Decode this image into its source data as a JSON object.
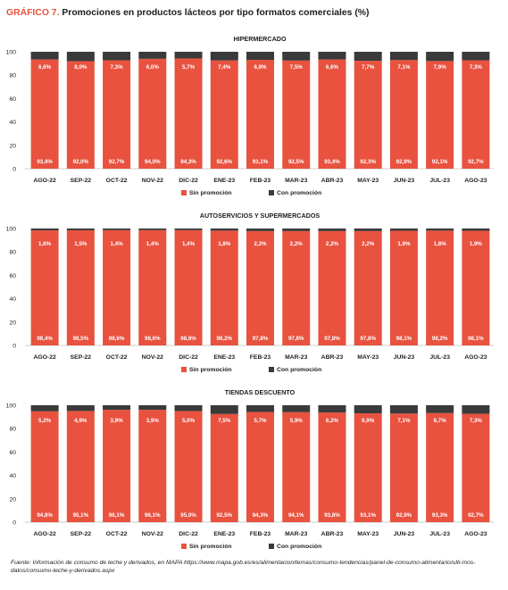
{
  "figure": {
    "label": "GRÁFICO 7.",
    "title": "Promociones en productos lácteos por tipo formatos comerciales (%)",
    "source": "Fuente: Información de consumo de leche y derivados, en MAPA https://www.mapa.gob.es/es/alimentacion/temas/consumo-tendencias/panel-de-consumo-alimentario/ulti-mos-datos/consumo-leche-y-derivados.aspx"
  },
  "colors": {
    "sin_promocion": "#e8523f",
    "con_promocion": "#3a3a3a"
  },
  "chart_data": [
    {
      "type": "bar",
      "stacked": true,
      "title": "HIPERMERCADO",
      "categories": [
        "AGO-22",
        "SEP-22",
        "OCT-22",
        "NOV-22",
        "DIC-22",
        "ENE-23",
        "FEB-23",
        "MAR-23",
        "ABR-23",
        "MAY-23",
        "JUN-23",
        "JUL-23",
        "AGO-23"
      ],
      "series": [
        {
          "name": "Sin promoción",
          "values": [
            93.4,
            92.0,
            92.7,
            94.0,
            94.3,
            92.6,
            93.1,
            92.5,
            93.4,
            92.3,
            92.9,
            92.1,
            92.7
          ],
          "labels": [
            "93,4%",
            "92,0%",
            "92,7%",
            "94,0%",
            "94,3%",
            "92,6%",
            "93,1%",
            "92,5%",
            "93,4%",
            "92,3%",
            "92,9%",
            "92,1%",
            "92,7%"
          ]
        },
        {
          "name": "Con promoción",
          "values": [
            6.6,
            8.0,
            7.3,
            6.0,
            5.7,
            7.4,
            6.9,
            7.5,
            6.6,
            7.7,
            7.1,
            7.9,
            7.3
          ],
          "labels": [
            "6,6%",
            "8,0%",
            "7,3%",
            "6,0%",
            "5,7%",
            "7,4%",
            "6,9%",
            "7,5%",
            "6,6%",
            "7,7%",
            "7,1%",
            "7,9%",
            "7,3%"
          ]
        }
      ],
      "ylim": [
        0,
        100
      ],
      "yticks": [
        "0",
        "20",
        "40",
        "60",
        "80",
        "100"
      ],
      "legend": "bottom"
    },
    {
      "type": "bar",
      "stacked": true,
      "title": "AUTOSERVICIOS Y SUPERMERCADOS",
      "categories": [
        "AGO-22",
        "SEP-22",
        "OCT-22",
        "NOV-22",
        "DIC-22",
        "ENE-23",
        "FEB-23",
        "MAR-23",
        "ABR-23",
        "MAY-23",
        "JUN-23",
        "JUL-23",
        "AGO-23"
      ],
      "series": [
        {
          "name": "Sin promoción",
          "values": [
            98.4,
            98.5,
            98.6,
            98.6,
            98.6,
            98.2,
            97.8,
            97.8,
            97.8,
            97.8,
            98.1,
            98.2,
            98.1
          ],
          "labels": [
            "98,4%",
            "98,5%",
            "98,6%",
            "98,6%",
            "98,6%",
            "98,2%",
            "97,8%",
            "97,8%",
            "97,8%",
            "97,8%",
            "98,1%",
            "98,2%",
            "98,1%"
          ]
        },
        {
          "name": "Con promoción",
          "values": [
            1.6,
            1.5,
            1.4,
            1.4,
            1.4,
            1.8,
            2.2,
            2.2,
            2.2,
            2.2,
            1.9,
            1.8,
            1.9
          ],
          "labels": [
            "1,6%",
            "1,5%",
            "1,4%",
            "1,4%",
            "1,4%",
            "1,8%",
            "2,2%",
            "2,2%",
            "2,2%",
            "2,2%",
            "1,9%",
            "1,8%",
            "1,9%"
          ]
        }
      ],
      "ylim": [
        0,
        100
      ],
      "yticks": [
        "0",
        "20",
        "40",
        "60",
        "80",
        "100"
      ],
      "legend": "bottom"
    },
    {
      "type": "bar",
      "stacked": true,
      "title": "TIENDAS DESCUENTO",
      "categories": [
        "AGO-22",
        "SEP-22",
        "OCT-22",
        "NOV-22",
        "DIC-22",
        "ENE-23",
        "FEB-23",
        "MAR-23",
        "ABR-23",
        "MAY-23",
        "JUN-23",
        "JUL-23",
        "AGO-23"
      ],
      "series": [
        {
          "name": "Sin promoción",
          "values": [
            94.8,
            95.1,
            96.1,
            96.1,
            95.0,
            92.5,
            94.3,
            94.1,
            93.8,
            93.1,
            92.9,
            93.3,
            92.7
          ],
          "labels": [
            "94,8%",
            "95,1%",
            "96,1%",
            "96,1%",
            "95,0%",
            "92,5%",
            "94,3%",
            "94,1%",
            "93,8%",
            "93,1%",
            "92,9%",
            "93,3%",
            "92,7%"
          ]
        },
        {
          "name": "Con promoción",
          "values": [
            5.2,
            4.9,
            3.9,
            3.9,
            5.0,
            7.5,
            5.7,
            5.9,
            6.2,
            6.9,
            7.1,
            6.7,
            7.3
          ],
          "labels": [
            "5,2%",
            "4,9%",
            "3,9%",
            "3,9%",
            "5,0%",
            "7,5%",
            "5,7%",
            "5,9%",
            "6,2%",
            "6,9%",
            "7,1%",
            "6,7%",
            "7,3%"
          ]
        }
      ],
      "ylim": [
        0,
        100
      ],
      "yticks": [
        "0",
        "20",
        "40",
        "60",
        "80",
        "100"
      ],
      "legend": "bottom"
    }
  ]
}
